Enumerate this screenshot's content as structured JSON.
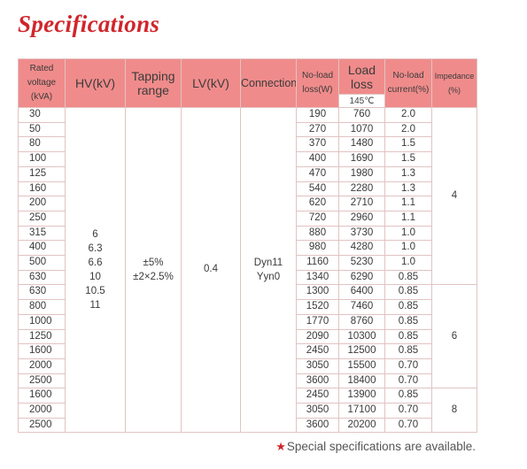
{
  "title": "Specifications",
  "headers": {
    "rated": "Rated\nvoltage\n(kVA)",
    "hv": "HV(kV)",
    "tapping": "Tapping\nrange",
    "lv": "LV(kV)",
    "connection": "Connection",
    "noload_loss": "No-load\nloss(W)",
    "load_loss": "Load\nloss",
    "load_loss_temp": "145℃",
    "noload_current": "No-load\ncurrent(%)",
    "impedance": "Impedance\n(%)"
  },
  "rows": [
    [
      "30",
      "190",
      "760",
      "2.0"
    ],
    [
      "50",
      "270",
      "1070",
      "2.0"
    ],
    [
      "80",
      "370",
      "1480",
      "1.5"
    ],
    [
      "100",
      "400",
      "1690",
      "1.5"
    ],
    [
      "125",
      "470",
      "1980",
      "1.3"
    ],
    [
      "160",
      "540",
      "2280",
      "1.3"
    ],
    [
      "200",
      "620",
      "2710",
      "1.1"
    ],
    [
      "250",
      "720",
      "2960",
      "1.1"
    ],
    [
      "315",
      "880",
      "3730",
      "1.0"
    ],
    [
      "400",
      "980",
      "4280",
      "1.0"
    ],
    [
      "500",
      "1160",
      "5230",
      "1.0"
    ],
    [
      "630",
      "1340",
      "6290",
      "0.85"
    ],
    [
      "630",
      "1300",
      "6400",
      "0.85"
    ],
    [
      "800",
      "1520",
      "7460",
      "0.85"
    ],
    [
      "1000",
      "1770",
      "8760",
      "0.85"
    ],
    [
      "1250",
      "2090",
      "10300",
      "0.85"
    ],
    [
      "1600",
      "2450",
      "12500",
      "0.85"
    ],
    [
      "2000",
      "3050",
      "15500",
      "0.70"
    ],
    [
      "2500",
      "3600",
      "18400",
      "0.70"
    ],
    [
      "1600",
      "2450",
      "13900",
      "0.85"
    ],
    [
      "2000",
      "3050",
      "17100",
      "0.70"
    ],
    [
      "2500",
      "3600",
      "20200",
      "0.70"
    ]
  ],
  "merged": {
    "hv_values": "6\n6.3\n6.6\n10\n10.5\n11",
    "tapping": "±5%\n±2×2.5%",
    "lv": "0.4",
    "connection": "Dyn11\nYyn0",
    "impedance_1": "4",
    "impedance_2": "6",
    "impedance_3": "8"
  },
  "footnote": {
    "star": "★",
    "text": "Special specifications are available."
  },
  "colors": {
    "title": "#d0262c",
    "header_bg": "#f08b8b",
    "border": "#e2c3c3",
    "star": "#d0262c"
  }
}
